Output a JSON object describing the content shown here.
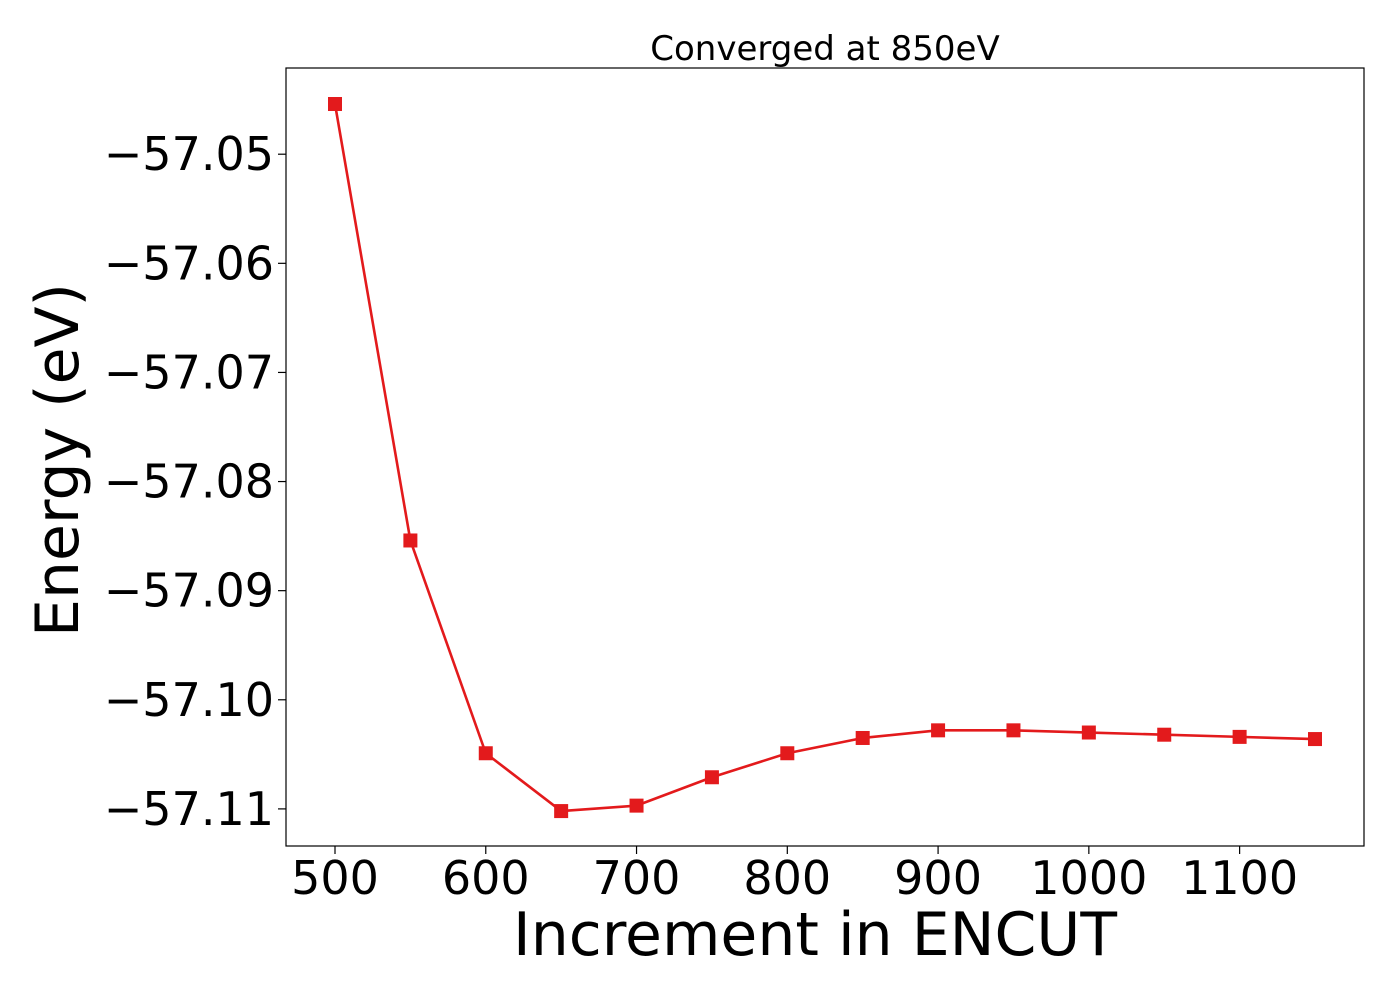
{
  "chart_data": {
    "type": "line",
    "title": "Converged at 850eV",
    "xlabel": "Increment in ENCUT",
    "ylabel": "Energy (eV)",
    "x": [
      500,
      550,
      600,
      650,
      700,
      750,
      800,
      850,
      900,
      950,
      1000,
      1050,
      1100,
      1150
    ],
    "series": [
      {
        "values": [
          -57.0454,
          -57.0854,
          -57.1049,
          -57.1102,
          -57.1097,
          -57.1071,
          -57.1049,
          -57.1035,
          -57.1028,
          -57.1028,
          -57.103,
          -57.1032,
          -57.1034,
          -57.1036
        ],
        "color": "#e31a1c",
        "marker": "square"
      }
    ],
    "xticks": [
      500,
      600,
      700,
      800,
      900,
      1000,
      1100
    ],
    "xtick_labels": [
      "500",
      "600",
      "700",
      "800",
      "900",
      "1000",
      "1100"
    ],
    "yticks": [
      -57.05,
      -57.06,
      -57.07,
      -57.08,
      -57.09,
      -57.1,
      -57.11
    ],
    "ytick_labels": [
      "−57.05",
      "−57.06",
      "−57.07",
      "−57.08",
      "−57.09",
      "−57.10",
      "−57.11"
    ],
    "xlim": [
      467.5,
      1182.5
    ],
    "ylim": [
      -57.1134,
      -57.0421
    ],
    "grid": false,
    "legend": "none"
  }
}
